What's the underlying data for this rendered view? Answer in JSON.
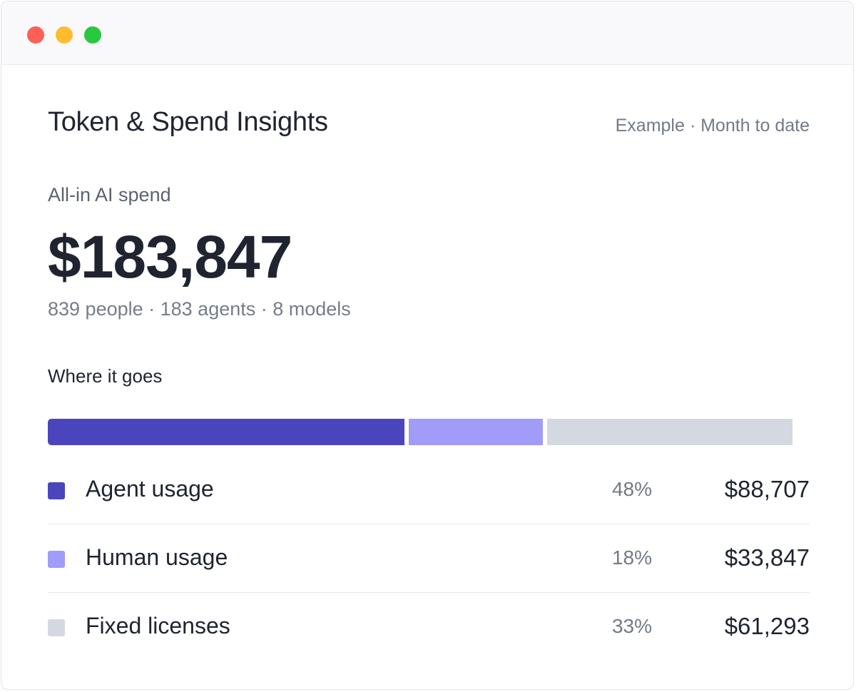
{
  "header": {
    "title": "Token & Spend Insights",
    "meta": "Example · Month to date"
  },
  "summary": {
    "label": "All-in AI spend",
    "value": "$183,847",
    "sub": "839 people · 183 agents · 8 models"
  },
  "breakdown": {
    "title": "Where it goes",
    "items": [
      {
        "label": "Agent usage",
        "percent": "48%",
        "amount": "$88,707",
        "share": 0.48,
        "color": "#4a45bd"
      },
      {
        "label": "Human usage",
        "percent": "18%",
        "amount": "$33,847",
        "share": 0.18,
        "color": "#a09cf8"
      },
      {
        "label": "Fixed licenses",
        "percent": "33%",
        "amount": "$61,293",
        "share": 0.33,
        "color": "#d4d8e0"
      }
    ]
  },
  "colors": {
    "window_close": "#fe5f57",
    "window_minimize": "#febc2e",
    "window_zoom": "#28c840"
  }
}
